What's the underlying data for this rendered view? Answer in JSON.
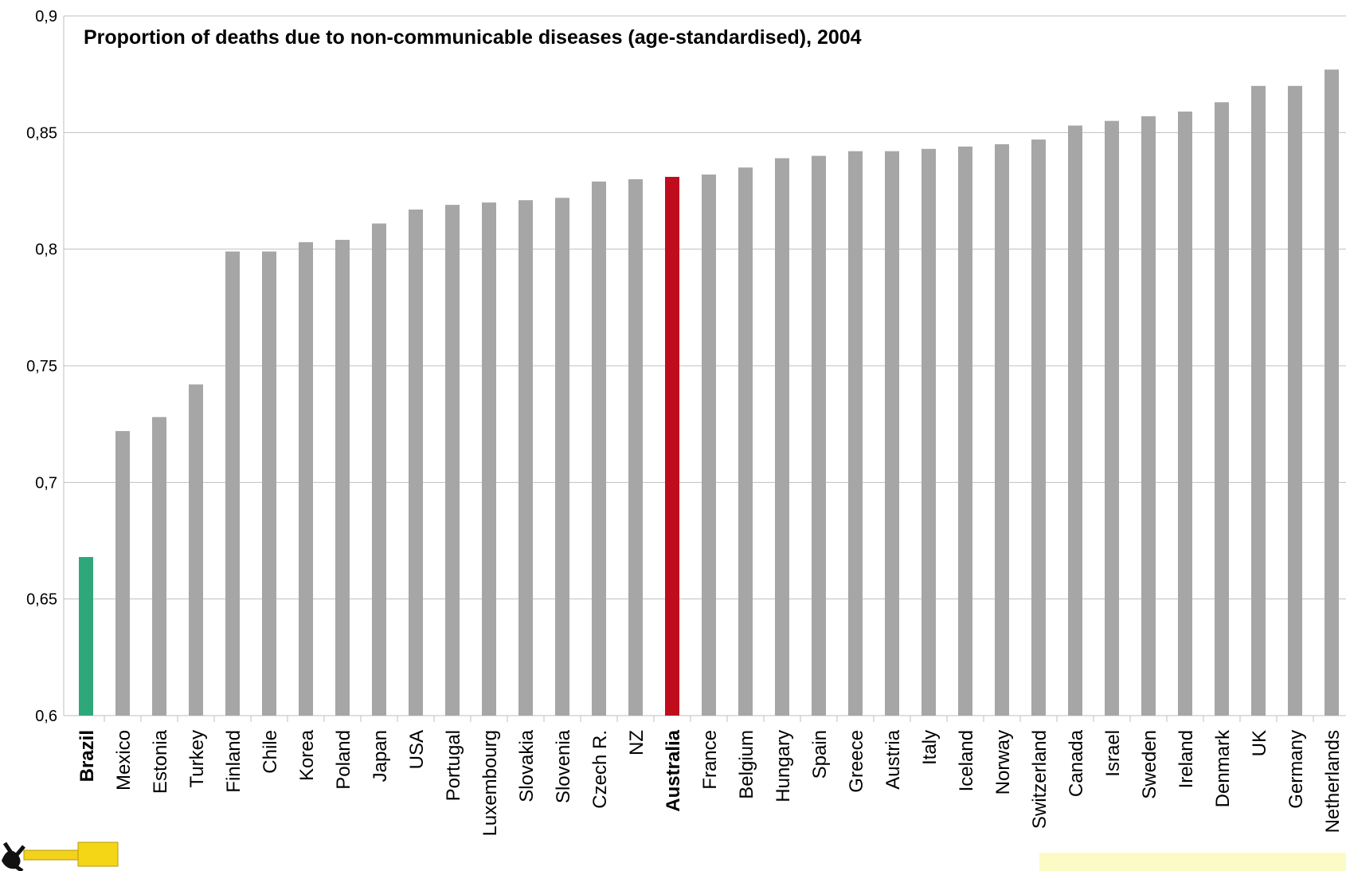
{
  "chart_data": {
    "type": "bar",
    "title": "Proportion of deaths due to non-communicable diseases (age-standardised), 2004",
    "xlabel": "",
    "ylabel": "",
    "ylim": [
      0.6,
      0.9
    ],
    "yticks": [
      "0,6",
      "0,65",
      "0,7",
      "0,75",
      "0,8",
      "0,85",
      "0,9"
    ],
    "grid": true,
    "legend": "none",
    "categories": [
      "Brazil",
      "Mexico",
      "Estonia",
      "Turkey",
      "Finland",
      "Chile",
      "Korea",
      "Poland",
      "Japan",
      "USA",
      "Portugal",
      "Luxembourg",
      "Slovakia",
      "Slovenia",
      "Czech R.",
      "NZ",
      "Australia",
      "France",
      "Belgium",
      "Hungary",
      "Spain",
      "Greece",
      "Austria",
      "Italy",
      "Iceland",
      "Norway",
      "Switzerland",
      "Canada",
      "Israel",
      "Sweden",
      "Ireland",
      "Denmark",
      "UK",
      "Germany",
      "Netherlands"
    ],
    "values": [
      0.668,
      0.722,
      0.728,
      0.742,
      0.799,
      0.799,
      0.803,
      0.804,
      0.811,
      0.817,
      0.819,
      0.82,
      0.821,
      0.822,
      0.829,
      0.83,
      0.831,
      0.832,
      0.835,
      0.839,
      0.84,
      0.842,
      0.842,
      0.843,
      0.844,
      0.845,
      0.847,
      0.853,
      0.855,
      0.857,
      0.859,
      0.863,
      0.87,
      0.87,
      0.877
    ],
    "highlights": {
      "Brazil": "#2ea87a",
      "Australia": "#c00d1e"
    },
    "bar_color": "#a6a6a6",
    "grid_color": "#bfbfbf"
  }
}
